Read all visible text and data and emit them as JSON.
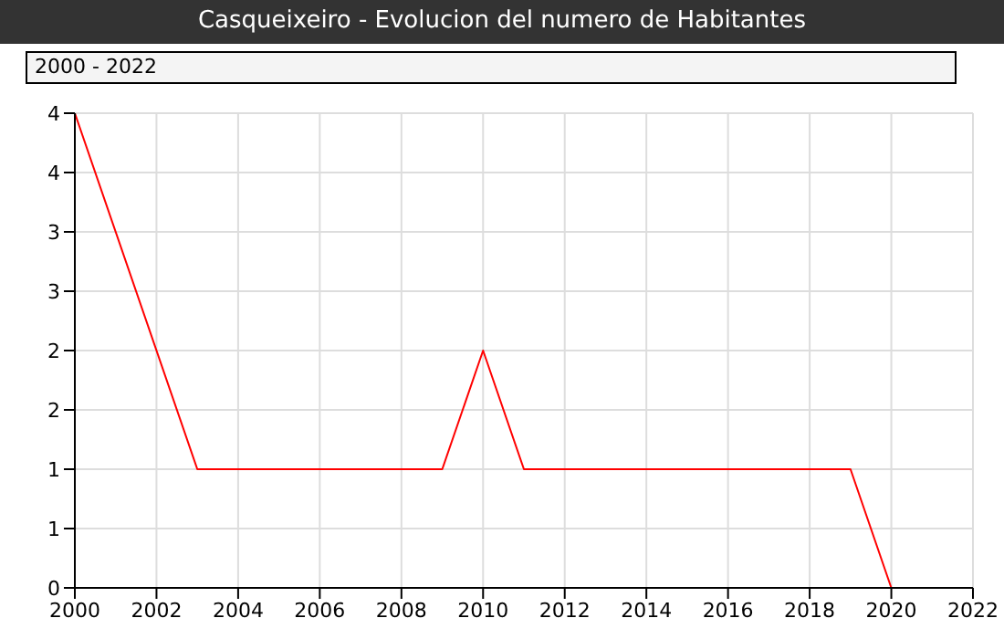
{
  "chart_data": {
    "type": "line",
    "title": "Casqueixeiro - Evolucion del numero de Habitantes",
    "subtitle": "2000 - 2022",
    "x": [
      2000,
      2003,
      2009,
      2010,
      2011,
      2019,
      2020
    ],
    "series": [
      {
        "color": "#ff0000",
        "values": [
          4,
          1,
          1,
          2,
          1,
          1,
          0
        ]
      }
    ],
    "xlim": [
      2000,
      2022
    ],
    "xticks": [
      2000,
      2002,
      2004,
      2006,
      2008,
      2010,
      2012,
      2014,
      2016,
      2018,
      2020,
      2022
    ],
    "ylim": [
      0,
      4
    ],
    "yticks": [
      0,
      {
        "value": 0.5,
        "label": "1"
      },
      1,
      {
        "value": 1.5,
        "label": "2"
      },
      2,
      {
        "value": 2.5,
        "label": "3"
      },
      3,
      {
        "value": 3.5,
        "label": "4"
      },
      4
    ],
    "grid": true,
    "legend": false,
    "marker": "none",
    "line_style": "solid"
  }
}
